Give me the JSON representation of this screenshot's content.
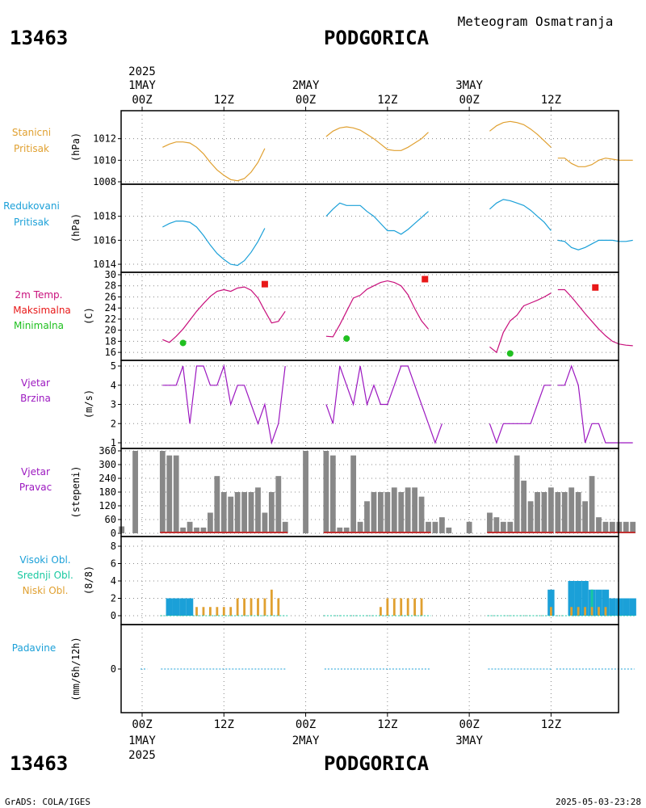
{
  "header": {
    "station_id": "13463",
    "station_name": "PODGORICA",
    "meteogram_title": "Meteogram Osmatranja",
    "year_top": "2025"
  },
  "footer": {
    "station_id": "13463",
    "station_name": "PODGORICA",
    "year_bottom": "2025",
    "grads_credit": "GrADS: COLA/IGES",
    "timestamp": "2025-05-03-23:28"
  },
  "time_axis": {
    "top_dates": [
      {
        "label": "1MAY",
        "hour": 0
      },
      {
        "label": "2MAY",
        "hour": 24
      },
      {
        "label": "3MAY",
        "hour": 48
      }
    ],
    "hour_ticks": [
      {
        "label": "00Z",
        "hour": 0
      },
      {
        "label": "12Z",
        "hour": 12
      },
      {
        "label": "00Z",
        "hour": 24
      },
      {
        "label": "12Z",
        "hour": 36
      },
      {
        "label": "00Z",
        "hour": 48
      },
      {
        "label": "12Z",
        "hour": 60
      }
    ]
  },
  "colors": {
    "station_pressure": "#e0a030",
    "reduced_pressure": "#1ba0d8",
    "temperature": "#c8107c",
    "maximum": "#e81818",
    "minimum": "#20c020",
    "wind_speed": "#9c18c0",
    "wind_dir_label": "#9c18c0",
    "wind_dir_bar": "#888888",
    "wind_dir_base": "#c03030",
    "cloud_high": "#1ba0d8",
    "cloud_mid": "#18c8a0",
    "cloud_low": "#e0a030",
    "precip": "#1ba0d8",
    "grid": "#888888"
  },
  "panels": {
    "station_pressure": {
      "label_lines": [
        "Stanicni",
        "Pritisak"
      ],
      "unit": "(hPa)"
    },
    "reduced_pressure": {
      "label_lines": [
        "Redukovani",
        "Pritisak"
      ],
      "unit": "(hPa)"
    },
    "temperature": {
      "label_lines": [
        "2m Temp.",
        "Maksimalna",
        "Minimalna"
      ],
      "unit": "(C)"
    },
    "wind_speed": {
      "label_lines": [
        "Vjetar",
        "Brzina"
      ],
      "unit": "(m/s)"
    },
    "wind_direction": {
      "label_lines": [
        "Vjetar",
        "Pravac"
      ],
      "unit": "(stepeni)"
    },
    "clouds": {
      "label_lines": [
        "Visoki Obl.",
        "Srednji Obl.",
        "Niski Obl."
      ],
      "unit": "(8/8)"
    },
    "precipitation": {
      "label_lines": [
        "Padavine"
      ],
      "unit": "(mm/6h/12h)"
    }
  },
  "chart_data": [
    {
      "type": "line",
      "id": "station_pressure",
      "ylabel": "(hPa)",
      "ylim": [
        1008,
        1014
      ],
      "yticks": [
        1008,
        1010,
        1012
      ],
      "series": [
        {
          "x": [
            3,
            4,
            5,
            6,
            7,
            8,
            9,
            10,
            11,
            12,
            13,
            14,
            15,
            16,
            17,
            18
          ],
          "values": [
            1011.2,
            1011.5,
            1011.7,
            1011.7,
            1011.6,
            1011.2,
            1010.6,
            1009.8,
            1009.1,
            1008.6,
            1008.2,
            1008.1,
            1008.3,
            1008.9,
            1009.8,
            1011.1
          ]
        },
        {
          "x": [
            27,
            28,
            29,
            30,
            31,
            32,
            33,
            34,
            35,
            36,
            37,
            38,
            39,
            40,
            41,
            42
          ],
          "values": [
            1012.2,
            1012.7,
            1013.0,
            1013.1,
            1013.0,
            1012.8,
            1012.4,
            1012.0,
            1011.5,
            1011.0,
            1010.9,
            1010.9,
            1011.2,
            1011.6,
            1012.0,
            1012.6
          ]
        },
        {
          "x": [
            51,
            52,
            53,
            54,
            55,
            56,
            57,
            58,
            59,
            60
          ],
          "values": [
            1012.7,
            1013.2,
            1013.5,
            1013.6,
            1013.5,
            1013.3,
            1012.9,
            1012.4,
            1011.8,
            1011.2
          ]
        },
        {
          "x": [
            61,
            62,
            63,
            64,
            65,
            66,
            67,
            68,
            69,
            70,
            71,
            72
          ],
          "values": [
            1010.2,
            1010.2,
            1009.7,
            1009.4,
            1009.4,
            1009.6,
            1010.0,
            1010.2,
            1010.1,
            1010.0,
            1010.0,
            1010.0
          ]
        }
      ]
    },
    {
      "type": "line",
      "id": "reduced_pressure",
      "ylabel": "(hPa)",
      "ylim": [
        1013.6,
        1020.2
      ],
      "yticks": [
        1014,
        1016,
        1018
      ],
      "series": [
        {
          "x": [
            3,
            4,
            5,
            6,
            7,
            8,
            9,
            10,
            11,
            12,
            13,
            14,
            15,
            16,
            17,
            18
          ],
          "values": [
            1017.1,
            1017.4,
            1017.6,
            1017.6,
            1017.5,
            1017.1,
            1016.4,
            1015.6,
            1014.9,
            1014.4,
            1014.0,
            1013.9,
            1014.3,
            1015.0,
            1015.9,
            1017.0
          ]
        },
        {
          "x": [
            27,
            28,
            29,
            30,
            31,
            32,
            33,
            34,
            35,
            36,
            37,
            38,
            39,
            40,
            41,
            42
          ],
          "values": [
            1018.0,
            1018.6,
            1019.1,
            1018.9,
            1018.9,
            1018.9,
            1018.4,
            1018.0,
            1017.4,
            1016.8,
            1016.8,
            1016.5,
            1016.9,
            1017.4,
            1017.9,
            1018.4
          ]
        },
        {
          "x": [
            51,
            52,
            53,
            54,
            55,
            56,
            57,
            58,
            59,
            60
          ],
          "values": [
            1018.6,
            1019.1,
            1019.4,
            1019.3,
            1019.1,
            1018.9,
            1018.5,
            1018.0,
            1017.5,
            1016.8
          ]
        },
        {
          "x": [
            61,
            62,
            63,
            64,
            65,
            66,
            67,
            68,
            69,
            70,
            71,
            72
          ],
          "values": [
            1016.0,
            1015.9,
            1015.4,
            1015.2,
            1015.4,
            1015.7,
            1016.0,
            1016.0,
            1016.0,
            1015.9,
            1015.9,
            1016.0
          ]
        }
      ]
    },
    {
      "type": "line",
      "id": "temperature",
      "ylabel": "(C)",
      "ylim": [
        15,
        30
      ],
      "yticks": [
        16,
        18,
        20,
        22,
        24,
        26,
        28,
        30
      ],
      "series": [
        {
          "x": [
            3,
            4,
            5,
            6,
            7,
            8,
            9,
            10,
            11,
            12,
            13,
            14,
            15,
            16,
            17,
            18,
            19,
            20,
            21
          ],
          "values": [
            18.3,
            17.8,
            18.9,
            20.2,
            21.8,
            23.4,
            24.8,
            26.1,
            27.0,
            27.3,
            27.0,
            27.6,
            27.8,
            27.2,
            25.8,
            23.5,
            21.3,
            21.6,
            23.4
          ]
        },
        {
          "x": [
            27,
            28,
            29,
            30,
            31,
            32,
            33,
            34,
            35,
            36,
            37,
            38,
            39,
            40,
            41,
            42
          ],
          "values": [
            18.9,
            18.8,
            21.0,
            23.4,
            25.8,
            26.3,
            27.4,
            28.0,
            28.6,
            28.9,
            28.6,
            28.0,
            26.4,
            23.9,
            21.7,
            20.2
          ]
        },
        {
          "x": [
            51,
            52,
            53,
            54,
            55,
            56,
            57,
            58,
            59,
            60
          ],
          "values": [
            17.0,
            16.0,
            19.6,
            21.7,
            22.7,
            24.4,
            24.9,
            25.4,
            26.0,
            26.7
          ]
        },
        {
          "x": [
            61,
            62,
            63,
            64,
            65,
            66,
            67,
            68,
            69,
            70,
            71,
            72
          ],
          "values": [
            27.3,
            27.3,
            26.0,
            24.5,
            23.0,
            21.6,
            20.2,
            19.0,
            18.0,
            17.5,
            17.3,
            17.2
          ]
        }
      ],
      "maximum": [
        {
          "x": 18,
          "value": 28.3
        },
        {
          "x": 41.5,
          "value": 29.2
        },
        {
          "x": 66.5,
          "value": 27.7
        }
      ],
      "minimum": [
        {
          "x": 6,
          "value": 17.7
        },
        {
          "x": 30,
          "value": 18.5
        },
        {
          "x": 54,
          "value": 15.8
        }
      ]
    },
    {
      "type": "line",
      "id": "wind_speed",
      "ylabel": "(m/s)",
      "ylim": [
        1,
        5
      ],
      "yticks": [
        1,
        2,
        3,
        4,
        5
      ],
      "series": [
        {
          "x": [
            3,
            4,
            5,
            6,
            7,
            8,
            9,
            10,
            11,
            12,
            13,
            14,
            15,
            16,
            17,
            18,
            19,
            20,
            21
          ],
          "values": [
            4,
            4,
            4,
            5,
            2,
            5,
            5,
            4,
            4,
            5,
            3,
            4,
            4,
            3,
            2,
            3,
            1,
            2,
            5
          ]
        },
        {
          "x": [
            27,
            28,
            29,
            30,
            31,
            32,
            33,
            34,
            35,
            36,
            37,
            38,
            39,
            40,
            41,
            42,
            43,
            44
          ],
          "values": [
            3,
            2,
            5,
            4,
            3,
            5,
            3,
            4,
            3,
            3,
            4,
            5,
            5,
            4,
            3,
            2,
            1,
            2
          ]
        },
        {
          "x": [
            51,
            52,
            53,
            54,
            55,
            56,
            57,
            58,
            59,
            60
          ],
          "values": [
            2,
            1,
            2,
            2,
            2,
            2,
            2,
            3,
            4,
            4
          ]
        },
        {
          "x": [
            61,
            62,
            63,
            64,
            65,
            66,
            67,
            68,
            69,
            70,
            71,
            72
          ],
          "values": [
            4,
            4,
            5,
            4,
            1,
            2,
            2,
            1,
            1,
            1,
            1,
            1
          ]
        }
      ]
    },
    {
      "type": "bar",
      "id": "wind_direction",
      "ylabel": "(stepeni)",
      "ylim": [
        0,
        360
      ],
      "yticks": [
        0,
        60,
        120,
        180,
        240,
        300,
        360
      ],
      "x": [
        -3,
        -1,
        3,
        4,
        5,
        6,
        7,
        8,
        9,
        10,
        11,
        12,
        13,
        14,
        15,
        16,
        17,
        18,
        19,
        20,
        21,
        24,
        27,
        28,
        29,
        30,
        31,
        32,
        33,
        34,
        35,
        36,
        37,
        38,
        39,
        40,
        41,
        42,
        43,
        44,
        45,
        48,
        51,
        52,
        53,
        54,
        55,
        56,
        57,
        58,
        59,
        60,
        61,
        62,
        63,
        64,
        65,
        66,
        67,
        68,
        69,
        70,
        71,
        72
      ],
      "values": [
        30,
        360,
        360,
        340,
        340,
        25,
        50,
        25,
        25,
        90,
        250,
        180,
        160,
        180,
        180,
        180,
        200,
        90,
        180,
        250,
        50,
        360,
        360,
        340,
        25,
        25,
        340,
        50,
        140,
        180,
        180,
        180,
        200,
        180,
        200,
        200,
        160,
        50,
        50,
        70,
        25,
        50,
        90,
        70,
        50,
        50,
        340,
        230,
        140,
        180,
        180,
        200,
        180,
        180,
        200,
        180,
        140,
        250,
        70,
        50,
        50,
        50,
        50,
        50
      ]
    },
    {
      "type": "bar",
      "id": "clouds",
      "ylabel": "(8/8)",
      "ylim": [
        0,
        8
      ],
      "yticks": [
        0,
        2,
        4,
        6,
        8
      ],
      "x": [
        3,
        4,
        5,
        6,
        7,
        8,
        9,
        10,
        11,
        12,
        13,
        14,
        15,
        16,
        17,
        18,
        19,
        20,
        27,
        28,
        29,
        30,
        31,
        32,
        33,
        34,
        35,
        36,
        37,
        38,
        39,
        40,
        41,
        42,
        51,
        52,
        53,
        54,
        55,
        56,
        57,
        58,
        59,
        60,
        61,
        62,
        63,
        64,
        65,
        66,
        67,
        68,
        69,
        70,
        71,
        72
      ],
      "series": [
        {
          "name": "Visoki Obl.",
          "values": [
            0,
            2,
            2,
            2,
            2,
            0,
            0,
            0,
            0,
            0,
            0,
            0,
            0,
            0,
            0,
            0,
            0,
            0,
            0,
            0,
            0,
            0,
            0,
            0,
            0,
            0,
            0,
            0,
            0,
            0,
            0,
            0,
            0,
            0,
            0,
            0,
            0,
            0,
            0,
            0,
            0,
            0,
            0,
            3,
            0,
            0,
            4,
            4,
            4,
            3,
            3,
            3,
            2,
            2,
            2,
            2
          ]
        },
        {
          "name": "Srednji Obl.",
          "values": [
            0,
            0,
            0,
            0,
            0,
            0,
            0,
            0,
            0,
            0,
            0,
            0,
            0,
            0,
            0,
            0,
            0,
            0,
            0,
            0,
            0,
            0,
            0,
            0,
            0,
            0,
            0,
            0,
            0,
            0,
            0,
            0,
            0,
            0,
            0,
            0,
            0,
            0,
            0,
            0,
            0,
            0,
            0,
            0,
            0,
            0,
            0,
            0,
            0,
            3,
            0,
            0,
            0,
            0,
            0,
            0
          ]
        },
        {
          "name": "Niski Obl.",
          "values": [
            0,
            0,
            0,
            0,
            0,
            1,
            1,
            1,
            1,
            1,
            1,
            2,
            2,
            2,
            2,
            2,
            3,
            2,
            0,
            0,
            0,
            0,
            0,
            0,
            0,
            0,
            1,
            2,
            2,
            2,
            2,
            2,
            2,
            0,
            0,
            0,
            0,
            0,
            0,
            0,
            0,
            0,
            0,
            1,
            0,
            0,
            1,
            1,
            1,
            1,
            1,
            1,
            0,
            0,
            0,
            0
          ]
        }
      ]
    },
    {
      "type": "bar",
      "id": "precipitation",
      "ylabel": "(mm/6h/12h)",
      "ylim": [
        -4,
        4
      ],
      "yticks": [
        0
      ],
      "series": [
        {
          "segments": [
            [
              0,
              0.5
            ],
            [
              3,
              21
            ],
            [
              27,
              42
            ],
            [
              51,
              60
            ],
            [
              61,
              72
            ]
          ]
        }
      ]
    }
  ]
}
